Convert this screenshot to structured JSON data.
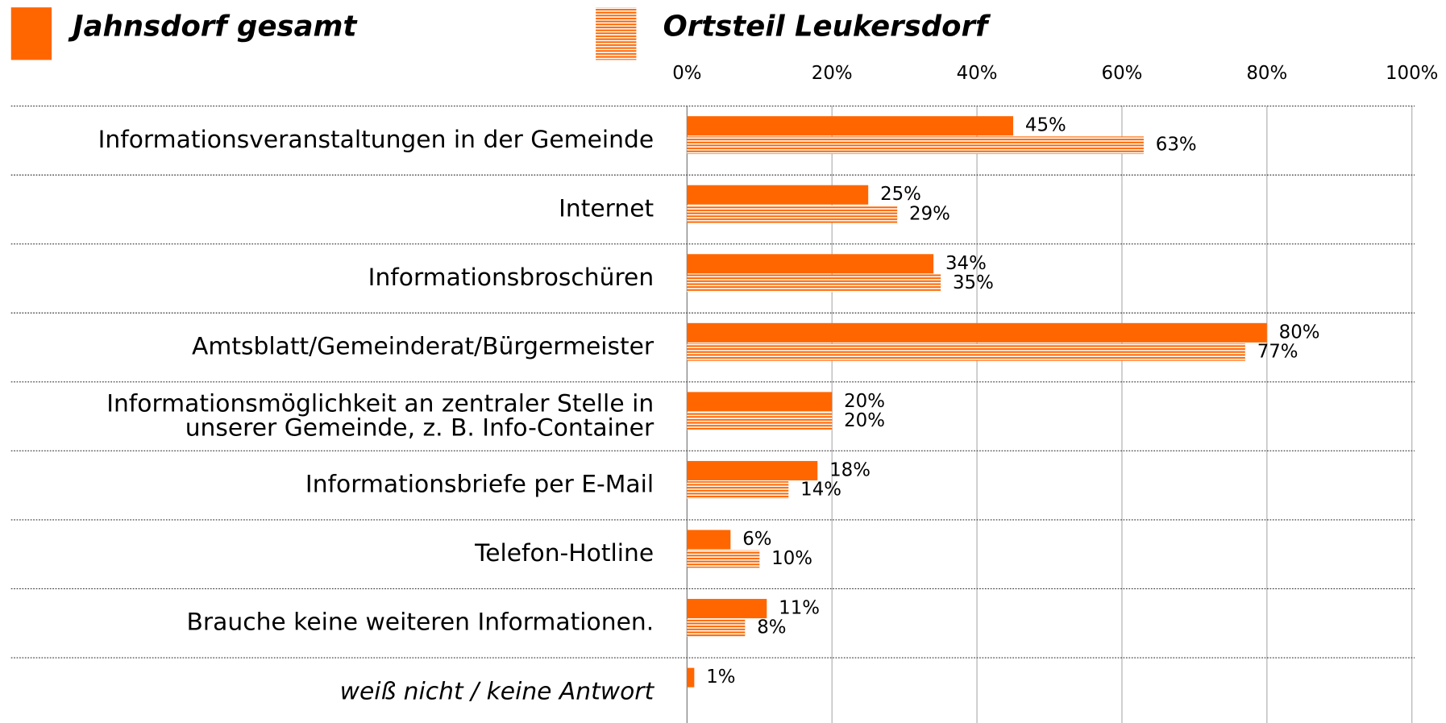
{
  "chart_data": {
    "type": "bar",
    "orientation": "horizontal",
    "categories": [
      "Informationsveranstaltungen in der Gemeinde",
      "Internet",
      "Informationsbroschüren",
      "Amtsblatt/Gemeinderat/Bürgermeister",
      "Informationsmöglichkeit an zentraler Stelle in\nunserer Gemeinde, z. B. Info-Container",
      "Informationsbriefe per E-Mail",
      "Telefon-Hotline",
      "Brauche keine weiteren Informationen.",
      "weiß nicht / keine Antwort"
    ],
    "series": [
      {
        "name": "Jahnsdorf gesamt",
        "color": "#ff6600",
        "pattern": "solid",
        "values": [
          45,
          25,
          34,
          80,
          20,
          18,
          6,
          11,
          1
        ],
        "value_labels": [
          "45%",
          "25%",
          "34%",
          "80%",
          "20%",
          "18%",
          "6%",
          "11%",
          "1%"
        ]
      },
      {
        "name": "Ortsteil Leukersdorf",
        "color": "#ff6600",
        "pattern": "horizontal-stripes",
        "values": [
          63,
          29,
          35,
          77,
          20,
          14,
          10,
          8,
          null
        ],
        "value_labels": [
          "63%",
          "29%",
          "35%",
          "77%",
          "20%",
          "14%",
          "10%",
          "8%",
          null
        ]
      }
    ],
    "xlim": [
      0,
      100
    ],
    "xticks": [
      {
        "value": 0,
        "label": "0%"
      },
      {
        "value": 20,
        "label": "20%"
      },
      {
        "value": 40,
        "label": "40%"
      },
      {
        "value": 60,
        "label": "60%"
      },
      {
        "value": 80,
        "label": "80%"
      },
      {
        "value": 100,
        "label": "100%"
      }
    ],
    "grid": true
  }
}
